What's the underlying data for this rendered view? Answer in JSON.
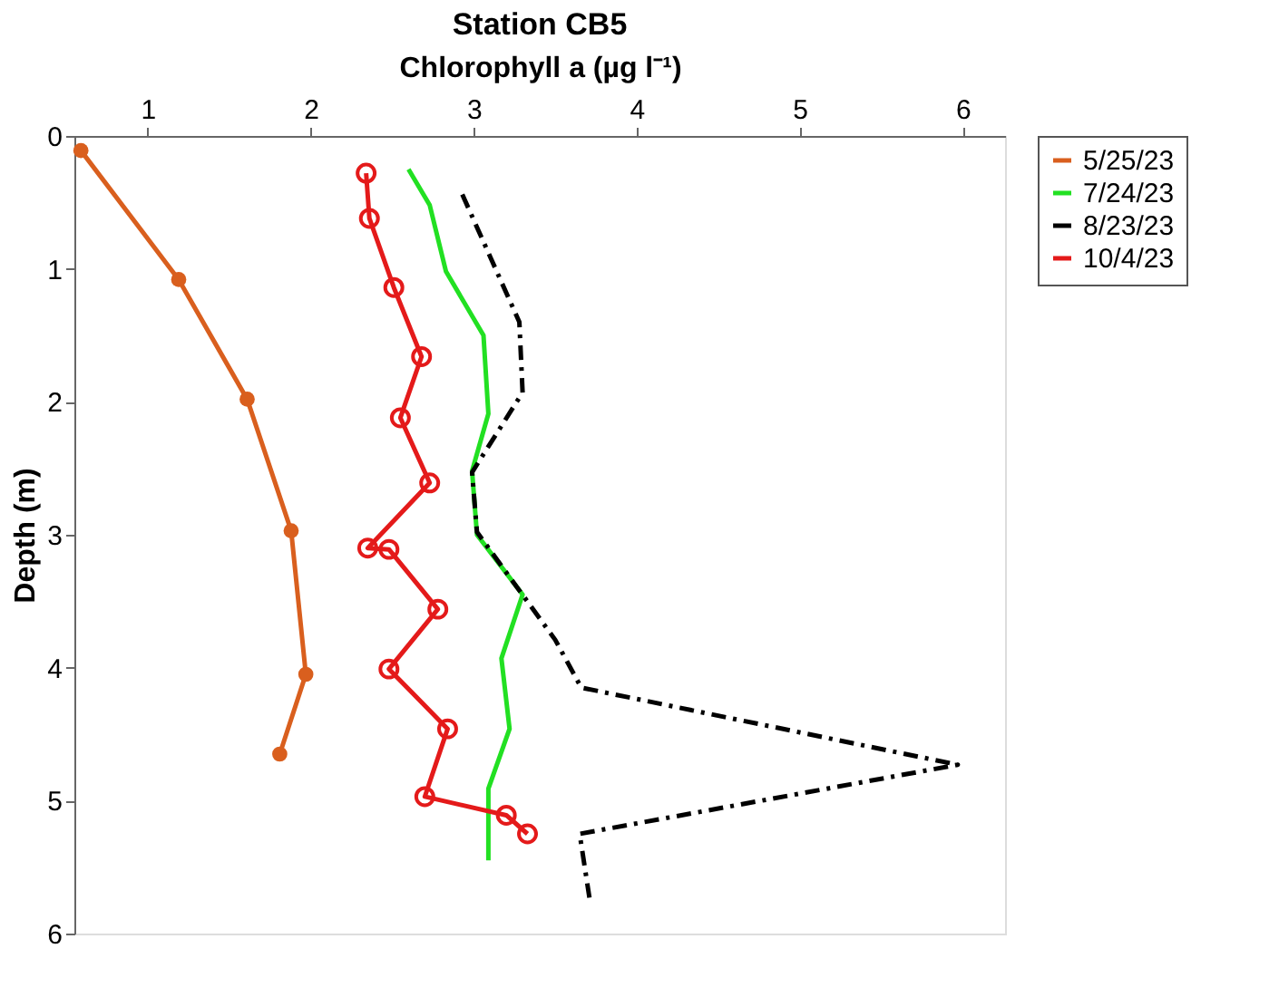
{
  "chart_data": {
    "type": "line",
    "title": "Station CB5",
    "xlabel": "Chlorophyll a (µg l⁻¹)",
    "ylabel": "Depth (m)",
    "xlim": [
      0.55,
      6.26
    ],
    "xticks": [
      1,
      2,
      3,
      4,
      5,
      6
    ],
    "ylim": [
      6,
      0
    ],
    "yticks": [
      0,
      1,
      2,
      3,
      4,
      5,
      6
    ],
    "grid": false,
    "legend": "right",
    "series": [
      {
        "name": "5/25/23",
        "color": "#d95f1e",
        "marker": "circle",
        "line_style": "solid",
        "x": [
          0.59,
          1.19,
          1.61,
          1.88,
          1.97,
          1.81
        ],
        "values": [
          0.11,
          1.08,
          1.98,
          2.97,
          4.05,
          4.65
        ]
      },
      {
        "name": " 7/24/23",
        "color": "#22e022",
        "marker": "none",
        "line_style": "solid",
        "x": [
          2.6,
          2.73,
          2.83,
          3.06,
          3.09,
          2.99,
          3.02,
          3.3,
          3.17,
          3.22,
          3.09,
          3.09
        ],
        "values": [
          0.25,
          0.52,
          1.02,
          1.5,
          2.09,
          2.52,
          3.0,
          3.45,
          3.93,
          4.46,
          4.91,
          5.45
        ]
      },
      {
        "name": "8/23/23",
        "color": "#000000",
        "marker": "none",
        "line_style": "dashed",
        "x": [
          2.93,
          3.28,
          3.3,
          2.99,
          3.02,
          3.5,
          3.66,
          5.97,
          3.65,
          3.71
        ],
        "values": [
          0.44,
          1.4,
          1.93,
          2.53,
          2.98,
          3.79,
          4.15,
          4.73,
          5.25,
          5.73
        ]
      },
      {
        "name": "10/4/23",
        "color": "#e41a1a",
        "marker": "open circle",
        "line_style": "solid",
        "x": [
          2.34,
          2.36,
          2.51,
          2.68,
          2.55,
          2.73,
          2.35,
          2.48,
          2.78,
          2.48,
          2.84,
          2.7,
          3.2,
          3.33
        ],
        "values": [
          0.28,
          0.62,
          1.14,
          1.66,
          2.12,
          2.61,
          3.1,
          3.11,
          3.56,
          4.01,
          4.46,
          4.97,
          5.11,
          5.25
        ]
      }
    ]
  }
}
